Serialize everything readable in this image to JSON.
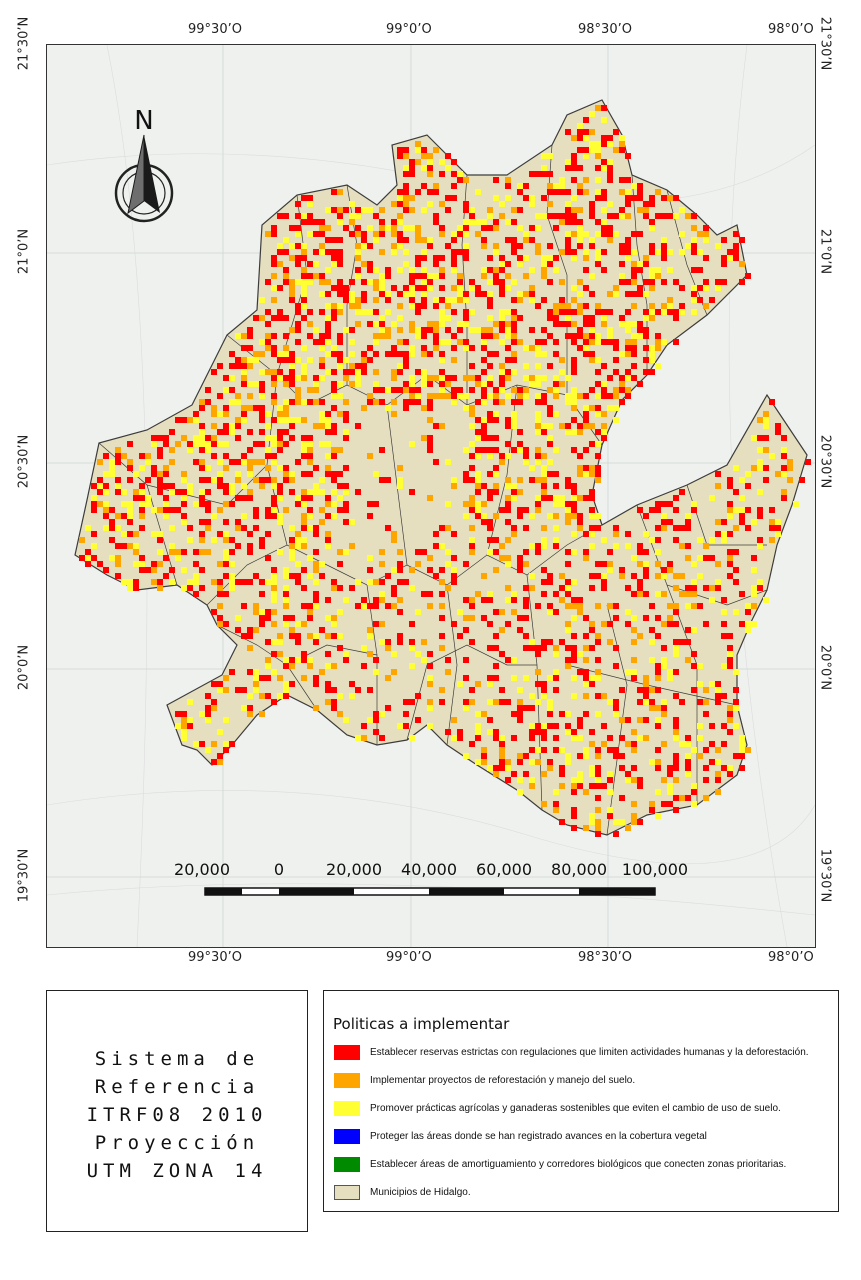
{
  "map": {
    "north_arrow_label": "N",
    "top_longitudes": [
      "99°30’O",
      "99°0’O",
      "98°30’O",
      "98°0’O"
    ],
    "bottom_longitudes": [
      "99°30’O",
      "99°0’O",
      "98°30’O",
      "98°0’O"
    ],
    "left_latitudes": [
      "21°30’N",
      "21°0’N",
      "20°30’N",
      "20°0’N",
      "19°30’N"
    ],
    "right_latitudes": [
      "21°30’N",
      "21°0’N",
      "20°30’N",
      "20°0’N",
      "19°30’N"
    ],
    "scale_labels": [
      "20,000",
      "0",
      "20,000",
      "40,000",
      "60,000",
      "80,000",
      "100,000"
    ],
    "colors": {
      "water_background": "#eef1ee",
      "municipality_fill": "#e6dfbf",
      "municipality_border": "#3c3c3c"
    }
  },
  "reference": {
    "lines": [
      "Sistema de",
      "Referencia",
      "ITRF08 2010",
      "Proyección",
      "UTM ZONA 14"
    ]
  },
  "legend": {
    "title": "Politicas a implementar",
    "items": [
      {
        "label": "Establecer reservas estrictas con regulaciones que limiten actividades humanas y la deforestación.",
        "color": "#ff0000"
      },
      {
        "label": "Implementar proyectos de reforestación y manejo del suelo.",
        "color": "#ffa500"
      },
      {
        "label": "Promover prácticas agrícolas y ganaderas sostenibles que eviten el cambio de uso de suelo.",
        "color": "#ffff33"
      },
      {
        "label": "Proteger las áreas donde se han registrado avances en la cobertura vegetal",
        "color": "#0000ff"
      },
      {
        "label": "Establecer áreas de amortiguamiento y corredores biológicos que conecten zonas prioritarias.",
        "color": "#008a00"
      },
      {
        "label": "Municipios de Hidalgo.",
        "color": "#e6dfbf"
      }
    ]
  }
}
